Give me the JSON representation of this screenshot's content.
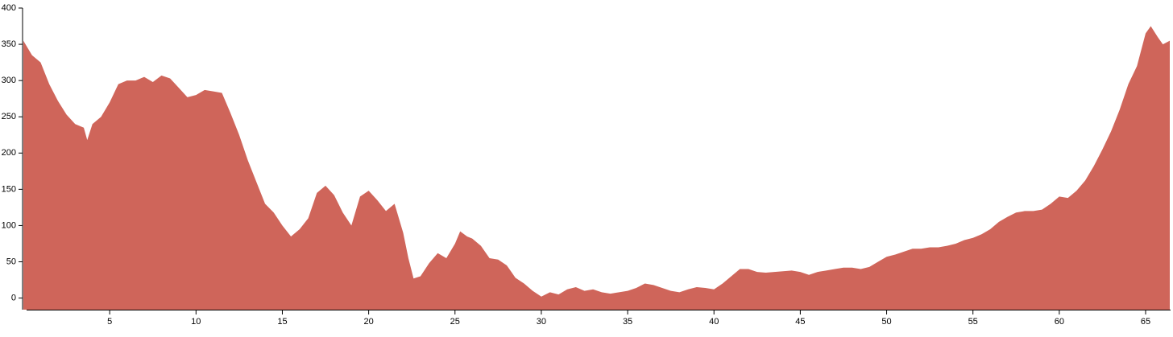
{
  "chart_data": {
    "type": "area",
    "color": "#cf655a",
    "x": [
      0,
      0.5,
      1,
      1.5,
      2,
      2.5,
      3,
      3.5,
      3.7,
      4,
      4.5,
      5,
      5.5,
      6,
      6.5,
      7,
      7.5,
      8,
      8.5,
      9,
      9.5,
      10,
      10.5,
      11,
      11.5,
      12,
      12.5,
      13,
      13.5,
      14,
      14.5,
      15,
      15.5,
      16,
      16.5,
      17,
      17.5,
      18,
      18.5,
      19,
      19.5,
      20,
      20.5,
      21,
      21.5,
      22,
      22.3,
      22.6,
      23,
      23.5,
      24,
      24.5,
      25,
      25.3,
      25.7,
      26,
      26.5,
      27,
      27.5,
      28,
      28.5,
      29,
      29.5,
      30,
      30.5,
      31,
      31.5,
      32,
      32.5,
      33,
      33.5,
      34,
      34.5,
      35,
      35.5,
      36,
      36.5,
      37,
      37.5,
      38,
      38.5,
      39,
      39.5,
      40,
      40.5,
      41,
      41.5,
      42,
      42.5,
      43,
      43.5,
      44,
      44.5,
      45,
      45.5,
      46,
      46.5,
      47,
      47.5,
      48,
      48.5,
      49,
      49.5,
      50,
      50.5,
      51,
      51.5,
      52,
      52.5,
      53,
      53.5,
      54,
      54.5,
      55,
      55.5,
      56,
      56.5,
      57,
      57.5,
      58,
      58.5,
      59,
      59.5,
      60,
      60.5,
      61,
      61.5,
      62,
      62.5,
      63,
      63.5,
      64,
      64.5,
      65,
      65.3,
      65.7,
      66,
      66.4
    ],
    "values": [
      355,
      335,
      325,
      295,
      272,
      253,
      240,
      235,
      218,
      240,
      250,
      270,
      295,
      300,
      300,
      305,
      298,
      307,
      303,
      290,
      277,
      280,
      287,
      285,
      283,
      255,
      225,
      190,
      160,
      130,
      118,
      100,
      85,
      95,
      110,
      145,
      155,
      142,
      118,
      100,
      140,
      148,
      135,
      120,
      130,
      90,
      55,
      27,
      30,
      48,
      62,
      55,
      75,
      92,
      85,
      82,
      72,
      55,
      53,
      45,
      28,
      20,
      10,
      2,
      8,
      5,
      12,
      15,
      10,
      12,
      8,
      6,
      8,
      10,
      14,
      20,
      18,
      14,
      10,
      8,
      12,
      15,
      14,
      12,
      20,
      30,
      40,
      40,
      36,
      35,
      36,
      37,
      38,
      36,
      32,
      36,
      38,
      40,
      42,
      42,
      40,
      43,
      50,
      57,
      60,
      64,
      68,
      68,
      70,
      70,
      72,
      75,
      80,
      83,
      88,
      95,
      105,
      112,
      118,
      120,
      120,
      122,
      130,
      140,
      138,
      148,
      162,
      182,
      205,
      230,
      260,
      295,
      320,
      365,
      375,
      360,
      350,
      355
    ],
    "xlim": [
      0,
      66.4
    ],
    "ylim": [
      -16,
      400
    ],
    "xticks": [
      5,
      10,
      15,
      20,
      25,
      30,
      35,
      40,
      45,
      50,
      55,
      60,
      65
    ],
    "yticks": [
      0,
      50,
      100,
      150,
      200,
      250,
      300,
      350,
      400
    ]
  }
}
